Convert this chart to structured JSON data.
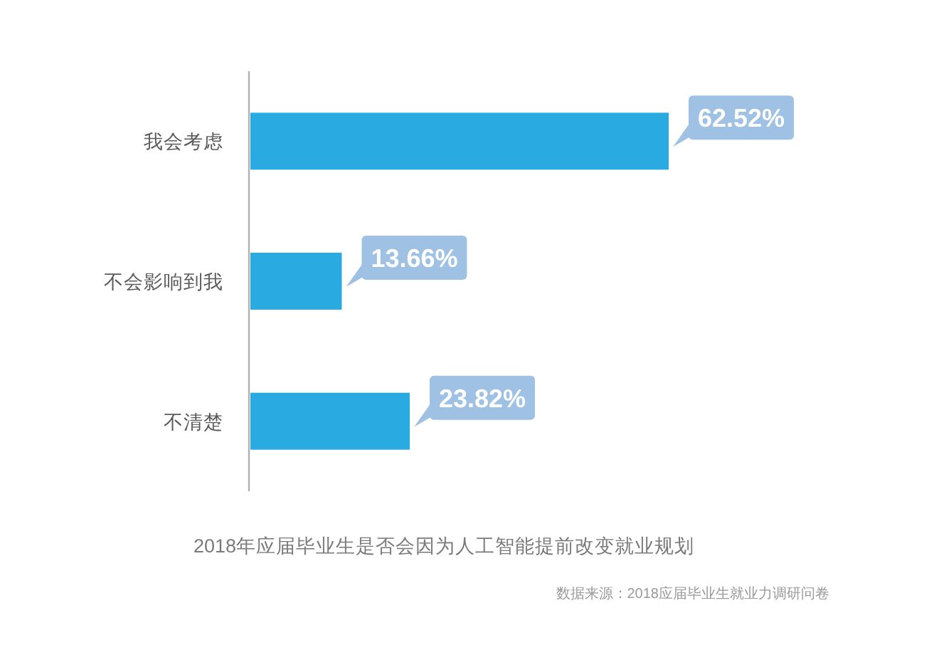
{
  "chart_data": {
    "type": "bar",
    "orientation": "horizontal",
    "title": "2018年应届毕业生是否会因为人工智能提前改变就业规划",
    "categories": [
      "我会考虑",
      "不会影响到我",
      "不清楚"
    ],
    "values": [
      62.52,
      13.66,
      23.82
    ],
    "value_labels": [
      "62.52%",
      "13.66%",
      "23.82%"
    ],
    "color": "#29abe2",
    "tick_labels": "y",
    "annotations": [
      "数据来源：2018应届毕业生就业力调研问卷"
    ]
  }
}
